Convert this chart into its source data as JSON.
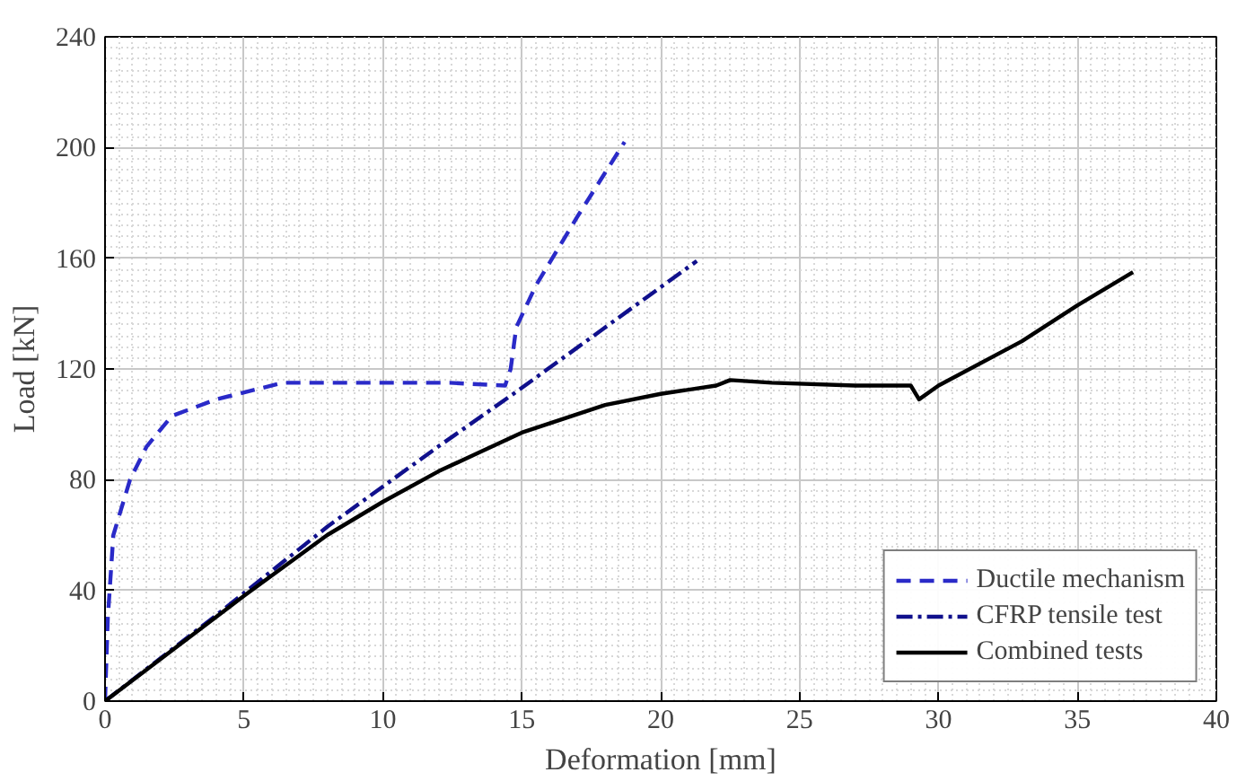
{
  "chart_data": {
    "type": "line",
    "xlabel": "Deformation [mm]",
    "ylabel": "Load [kN]",
    "xlim": [
      0,
      40
    ],
    "ylim": [
      0,
      240
    ],
    "xticks": [
      0,
      5,
      10,
      15,
      20,
      25,
      30,
      35,
      40
    ],
    "yticks": [
      0,
      40,
      80,
      120,
      160,
      200,
      240
    ],
    "grid": true,
    "legend": "bottom right",
    "series": [
      {
        "name": "Ductile mechanism",
        "color": "#2a2ac8",
        "line_style": "dashed",
        "x": [
          0,
          0.1,
          0.3,
          0.9,
          1.5,
          2.4,
          4,
          6.4,
          9,
          12.4,
          14.4,
          14.6,
          14.8,
          15.5,
          17,
          18.7
        ],
        "values": [
          0,
          30,
          60,
          80,
          92,
          103,
          109,
          115,
          115,
          115,
          114,
          120,
          135,
          150,
          175,
          202
        ]
      },
      {
        "name": "CFRP tensile test",
        "color": "#10108c",
        "line_style": "dashdot",
        "x": [
          0,
          4,
          8,
          12,
          14.7,
          18,
          21.3
        ],
        "values": [
          0,
          31,
          63,
          92,
          111,
          135,
          159
        ]
      },
      {
        "name": "Combined tests",
        "color": "#000000",
        "line_style": "solid",
        "x": [
          0,
          5,
          8,
          10,
          12,
          15,
          18,
          20,
          22,
          22.5,
          24,
          27,
          29,
          29.3,
          30,
          33,
          35,
          37
        ],
        "values": [
          0,
          38,
          60,
          72,
          83,
          97,
          107,
          111,
          114,
          116,
          115,
          114,
          114,
          109,
          114,
          130,
          143,
          155
        ]
      }
    ]
  }
}
